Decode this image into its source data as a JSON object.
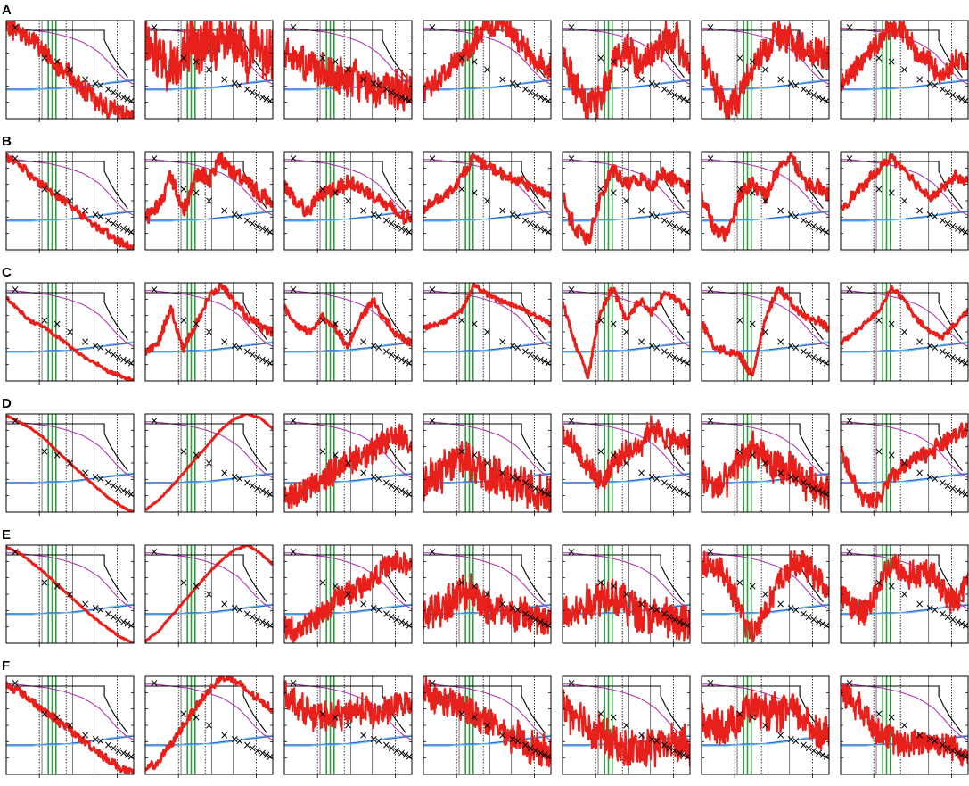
{
  "chart_data": {
    "type": "line",
    "title": "",
    "layout": {
      "rows": 6,
      "cols": 7
    },
    "rows": [
      {
        "label": "A",
        "noise": [
          0.12,
          0.32,
          0.22,
          0.14,
          0.2,
          0.18,
          0.13
        ],
        "shape": [
          [
            0.95,
            0.9,
            0.8,
            0.68,
            0.55,
            0.42,
            0.3,
            0.2,
            0.12,
            0.05,
            0.0
          ],
          [
            0.85,
            0.65,
            0.55,
            0.68,
            0.75,
            0.78,
            0.78,
            0.72,
            0.7,
            0.68,
            0.66
          ],
          [
            0.7,
            0.62,
            0.55,
            0.45,
            0.4,
            0.42,
            0.36,
            0.32,
            0.3,
            0.28,
            0.25
          ],
          [
            0.28,
            0.4,
            0.5,
            0.62,
            0.8,
            0.92,
            0.98,
            0.88,
            0.72,
            0.58,
            0.5
          ],
          [
            0.68,
            0.3,
            0.1,
            0.2,
            0.6,
            0.72,
            0.55,
            0.65,
            0.8,
            0.78,
            0.55
          ],
          [
            0.65,
            0.35,
            0.05,
            0.25,
            0.55,
            0.72,
            0.88,
            0.78,
            0.7,
            0.68,
            0.6
          ],
          [
            0.35,
            0.5,
            0.65,
            0.8,
            0.92,
            0.9,
            0.68,
            0.58,
            0.45,
            0.6,
            0.55
          ]
        ]
      },
      {
        "label": "B",
        "noise": [
          0.05,
          0.1,
          0.09,
          0.06,
          0.09,
          0.09,
          0.06
        ],
        "shape": [
          [
            0.95,
            0.88,
            0.75,
            0.65,
            0.55,
            0.45,
            0.35,
            0.25,
            0.15,
            0.07,
            0.02
          ],
          [
            0.35,
            0.45,
            0.75,
            0.4,
            0.78,
            0.72,
            0.92,
            0.78,
            0.72,
            0.55,
            0.5
          ],
          [
            0.65,
            0.45,
            0.4,
            0.58,
            0.62,
            0.7,
            0.62,
            0.55,
            0.45,
            0.35,
            0.3
          ],
          [
            0.4,
            0.52,
            0.58,
            0.75,
            0.95,
            0.85,
            0.78,
            0.72,
            0.68,
            0.6,
            0.55
          ],
          [
            0.55,
            0.2,
            0.1,
            0.55,
            0.82,
            0.65,
            0.72,
            0.65,
            0.78,
            0.7,
            0.62
          ],
          [
            0.55,
            0.2,
            0.15,
            0.55,
            0.7,
            0.55,
            0.8,
            0.95,
            0.72,
            0.62,
            0.55
          ],
          [
            0.42,
            0.55,
            0.68,
            0.82,
            0.95,
            0.82,
            0.65,
            0.55,
            0.62,
            0.75,
            0.68
          ]
        ]
      },
      {
        "label": "C",
        "noise": [
          0.02,
          0.05,
          0.05,
          0.03,
          0.05,
          0.05,
          0.03
        ],
        "shape": [
          [
            0.85,
            0.72,
            0.6,
            0.55,
            0.45,
            0.35,
            0.25,
            0.18,
            0.1,
            0.05,
            0.0
          ],
          [
            0.3,
            0.38,
            0.75,
            0.32,
            0.6,
            0.85,
            0.98,
            0.8,
            0.65,
            0.55,
            0.5
          ],
          [
            0.75,
            0.55,
            0.5,
            0.65,
            0.55,
            0.35,
            0.65,
            0.82,
            0.6,
            0.45,
            0.4
          ],
          [
            0.55,
            0.58,
            0.62,
            0.72,
            0.98,
            0.88,
            0.82,
            0.78,
            0.72,
            0.65,
            0.58
          ],
          [
            0.8,
            0.4,
            0.05,
            0.72,
            0.95,
            0.6,
            0.82,
            0.7,
            0.9,
            0.82,
            0.68
          ],
          [
            0.6,
            0.35,
            0.3,
            0.25,
            0.05,
            0.65,
            0.95,
            0.8,
            0.65,
            0.62,
            0.55
          ],
          [
            0.38,
            0.48,
            0.6,
            0.72,
            0.95,
            0.82,
            0.62,
            0.5,
            0.45,
            0.58,
            0.72
          ]
        ]
      },
      {
        "label": "D",
        "noise": [
          0.008,
          0.008,
          0.16,
          0.24,
          0.14,
          0.2,
          0.1
        ],
        "shape": [
          [
            0.98,
            0.92,
            0.85,
            0.75,
            0.62,
            0.5,
            0.38,
            0.26,
            0.15,
            0.06,
            0.0
          ],
          [
            0.02,
            0.12,
            0.25,
            0.4,
            0.55,
            0.7,
            0.85,
            0.95,
            1.0,
            0.96,
            0.85
          ],
          [
            0.15,
            0.2,
            0.25,
            0.32,
            0.45,
            0.52,
            0.58,
            0.62,
            0.72,
            0.78,
            0.72
          ],
          [
            0.3,
            0.35,
            0.45,
            0.55,
            0.5,
            0.42,
            0.38,
            0.3,
            0.25,
            0.2,
            0.2
          ],
          [
            0.82,
            0.68,
            0.45,
            0.3,
            0.5,
            0.6,
            0.68,
            0.88,
            0.75,
            0.72,
            0.68
          ],
          [
            0.4,
            0.25,
            0.3,
            0.55,
            0.65,
            0.52,
            0.45,
            0.42,
            0.32,
            0.28,
            0.22
          ],
          [
            0.65,
            0.3,
            0.1,
            0.15,
            0.35,
            0.45,
            0.55,
            0.62,
            0.7,
            0.78,
            0.85
          ]
        ]
      },
      {
        "label": "E",
        "noise": [
          0.008,
          0.008,
          0.14,
          0.22,
          0.22,
          0.16,
          0.16
        ],
        "shape": [
          [
            0.98,
            0.92,
            0.82,
            0.72,
            0.6,
            0.48,
            0.36,
            0.25,
            0.15,
            0.06,
            0.0
          ],
          [
            0.02,
            0.12,
            0.27,
            0.42,
            0.57,
            0.72,
            0.85,
            0.95,
            1.0,
            0.92,
            0.8
          ],
          [
            0.15,
            0.12,
            0.2,
            0.3,
            0.45,
            0.52,
            0.58,
            0.68,
            0.78,
            0.82,
            0.75
          ],
          [
            0.3,
            0.35,
            0.42,
            0.5,
            0.52,
            0.38,
            0.32,
            0.28,
            0.3,
            0.22,
            0.18
          ],
          [
            0.35,
            0.3,
            0.42,
            0.5,
            0.48,
            0.4,
            0.32,
            0.28,
            0.25,
            0.22,
            0.15
          ],
          [
            0.85,
            0.78,
            0.65,
            0.32,
            0.12,
            0.35,
            0.6,
            0.78,
            0.82,
            0.68,
            0.5
          ],
          [
            0.5,
            0.38,
            0.3,
            0.6,
            0.82,
            0.72,
            0.68,
            0.75,
            0.55,
            0.42,
            0.65
          ]
        ]
      },
      {
        "label": "F",
        "noise": [
          0.05,
          0.05,
          0.16,
          0.18,
          0.22,
          0.2,
          0.16
        ],
        "shape": [
          [
            0.92,
            0.85,
            0.75,
            0.65,
            0.55,
            0.45,
            0.35,
            0.25,
            0.15,
            0.06,
            0.0
          ],
          [
            0.05,
            0.12,
            0.3,
            0.5,
            0.7,
            0.85,
            1.0,
            0.95,
            0.85,
            0.75,
            0.65
          ],
          [
            0.85,
            0.72,
            0.62,
            0.58,
            0.6,
            0.62,
            0.68,
            0.62,
            0.65,
            0.7,
            0.72
          ],
          [
            0.85,
            0.78,
            0.72,
            0.68,
            0.62,
            0.55,
            0.45,
            0.38,
            0.3,
            0.25,
            0.2
          ],
          [
            0.72,
            0.6,
            0.5,
            0.4,
            0.3,
            0.25,
            0.25,
            0.28,
            0.3,
            0.32,
            0.3
          ],
          [
            0.55,
            0.48,
            0.5,
            0.58,
            0.72,
            0.62,
            0.6,
            0.7,
            0.55,
            0.45,
            0.4
          ],
          [
            0.85,
            0.75,
            0.6,
            0.45,
            0.35,
            0.3,
            0.32,
            0.35,
            0.3,
            0.28,
            0.2
          ]
        ]
      }
    ],
    "reference_curves": {
      "black_step": {
        "color": "#000000",
        "y": [
          0.9,
          0.9,
          0.9,
          0.9,
          0.9,
          0.9,
          0.9,
          0.9,
          0.9,
          0.9,
          0.9,
          0.8,
          0.68,
          0.58,
          0.5,
          0.42
        ]
      },
      "magenta_decay": {
        "color": "#b03ab0",
        "y": [
          0.92,
          0.92,
          0.91,
          0.9,
          0.89,
          0.88,
          0.86,
          0.84,
          0.81,
          0.78,
          0.73,
          0.67,
          0.58,
          0.48,
          0.4,
          0.35
        ]
      },
      "blue_flat": {
        "color": "#3b63d6",
        "y": [
          0.3,
          0.3,
          0.3,
          0.3,
          0.3,
          0.31,
          0.31,
          0.31,
          0.32,
          0.33,
          0.34,
          0.35,
          0.36,
          0.37,
          0.38,
          0.39
        ]
      },
      "cyan_flat": {
        "color": "#64c7e8",
        "y": [
          0.29,
          0.29,
          0.29,
          0.29,
          0.3,
          0.3,
          0.3,
          0.31,
          0.31,
          0.32,
          0.33,
          0.35,
          0.37,
          0.38,
          0.39,
          0.4
        ]
      }
    },
    "markers": {
      "symbol": "×",
      "x": [
        0.07,
        0.3,
        0.4,
        0.5,
        0.62,
        0.7,
        0.74,
        0.8,
        0.84,
        0.88,
        0.92,
        0.95,
        0.98
      ],
      "y": [
        0.93,
        0.62,
        0.58,
        0.5,
        0.4,
        0.36,
        0.34,
        0.3,
        0.27,
        0.24,
        0.22,
        0.2,
        0.18
      ]
    },
    "vertical_lines": {
      "solid_gray": [
        0.28,
        0.52,
        0.69
      ],
      "dotted": [
        0.26,
        0.47,
        0.87
      ],
      "green": [
        0.33,
        0.36,
        0.39
      ]
    },
    "colors": {
      "signal": "#e8201c",
      "grid": "#555555",
      "green": "#2e9e3e",
      "frame": "#000000"
    },
    "legend": "none",
    "grid": "vertical-lines-only"
  }
}
